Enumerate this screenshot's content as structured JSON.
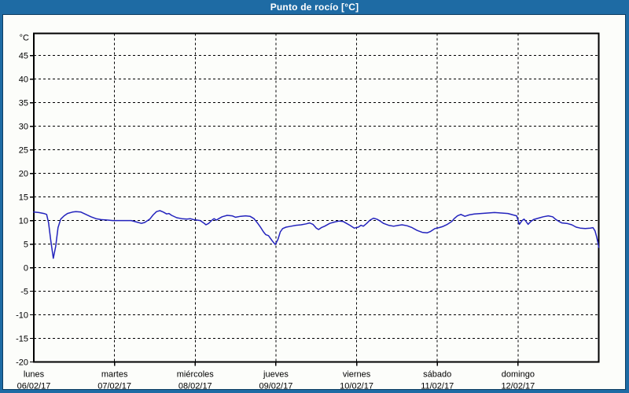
{
  "window": {
    "title": "Punto de rocío [°C]"
  },
  "colors": {
    "titlebar_bg": "#1e6ba4",
    "frame_border": "#1e6ba4",
    "inner_border": "#0d3d61",
    "content_bg": "#fcfdfa",
    "title_text": "#ffffff",
    "axis": "#000000",
    "grid": "#000000",
    "line": "#2323bd",
    "label_text": "#000000"
  },
  "chart_data": {
    "type": "line",
    "title": "Punto de rocío [°C]",
    "ylabel": "°C",
    "xlabel": "",
    "ylim": [
      -20,
      49.7
    ],
    "y_ticks": [
      45,
      40,
      35,
      30,
      25,
      20,
      15,
      10,
      5,
      0,
      -5,
      -10,
      -15,
      -20
    ],
    "grid": "dashed",
    "legend_position": "none",
    "x_axis": {
      "unit": "hours",
      "range_hours": [
        0,
        168
      ],
      "day_width_hours": 24,
      "day_labels": [
        {
          "day": "lunes",
          "date": "06/02/17"
        },
        {
          "day": "martes",
          "date": "07/02/17"
        },
        {
          "day": "miércoles",
          "date": "08/02/17"
        },
        {
          "day": "jueves",
          "date": "09/02/17"
        },
        {
          "day": "viernes",
          "date": "10/02/17"
        },
        {
          "day": "sábado",
          "date": "11/02/17"
        },
        {
          "day": "domingo",
          "date": "12/02/17"
        }
      ]
    },
    "series": [
      {
        "name": "Punto de rocío",
        "unit": "°C",
        "color": "#2323bd",
        "points_hours_value": [
          [
            0,
            11.8
          ],
          [
            1.5,
            11.7
          ],
          [
            3,
            11.5
          ],
          [
            3.8,
            11.3
          ],
          [
            4.4,
            9.5
          ],
          [
            5,
            6
          ],
          [
            5.8,
            2
          ],
          [
            6.5,
            4.5
          ],
          [
            7.2,
            8.5
          ],
          [
            8,
            10.3
          ],
          [
            9,
            11
          ],
          [
            10,
            11.5
          ],
          [
            11.5,
            11.8
          ],
          [
            12.5,
            11.9
          ],
          [
            14,
            11.8
          ],
          [
            15.5,
            11.3
          ],
          [
            17,
            10.8
          ],
          [
            18.5,
            10.4
          ],
          [
            20,
            10.2
          ],
          [
            22,
            10.1
          ],
          [
            23.5,
            10
          ],
          [
            25,
            10
          ],
          [
            27,
            10
          ],
          [
            29,
            10
          ],
          [
            30.5,
            9.7
          ],
          [
            32,
            9.4
          ],
          [
            33,
            9.6
          ],
          [
            34.5,
            10.3
          ],
          [
            35.5,
            11.2
          ],
          [
            36.5,
            11.9
          ],
          [
            37.5,
            12.1
          ],
          [
            38.5,
            11.8
          ],
          [
            39.5,
            11.4
          ],
          [
            40.2,
            11.5
          ],
          [
            41,
            11.1
          ],
          [
            42.5,
            10.6
          ],
          [
            44,
            10.4
          ],
          [
            45.5,
            10.3
          ],
          [
            46.5,
            10.4
          ],
          [
            47.5,
            10.2
          ],
          [
            48.5,
            10.1
          ],
          [
            49.5,
            10
          ],
          [
            50.5,
            9.5
          ],
          [
            51.2,
            9.1
          ],
          [
            52,
            9.4
          ],
          [
            53,
            10.1
          ],
          [
            53.6,
            10.4
          ],
          [
            54.3,
            10.1
          ],
          [
            55,
            10.4
          ],
          [
            56,
            10.8
          ],
          [
            57.5,
            11.1
          ],
          [
            59,
            11
          ],
          [
            60,
            10.7
          ],
          [
            61.5,
            10.9
          ],
          [
            63,
            11
          ],
          [
            64.3,
            10.9
          ],
          [
            65.5,
            10.4
          ],
          [
            66.5,
            9.5
          ],
          [
            67.5,
            8.5
          ],
          [
            68.3,
            7.6
          ],
          [
            69,
            7
          ],
          [
            69.8,
            6.8
          ],
          [
            70.8,
            5.8
          ],
          [
            71.8,
            4.9
          ],
          [
            72.6,
            6
          ],
          [
            73.3,
            7.6
          ],
          [
            74,
            8.3
          ],
          [
            75,
            8.6
          ],
          [
            76.5,
            8.8
          ],
          [
            78,
            9
          ],
          [
            79.5,
            9.1
          ],
          [
            81,
            9.3
          ],
          [
            82,
            9.5
          ],
          [
            83,
            9.2
          ],
          [
            84,
            8.4
          ],
          [
            84.7,
            8.1
          ],
          [
            85.5,
            8.5
          ],
          [
            86.5,
            8.8
          ],
          [
            88,
            9.4
          ],
          [
            89.5,
            9.7
          ],
          [
            90.8,
            9.9
          ],
          [
            92,
            9.8
          ],
          [
            93,
            9.4
          ],
          [
            94,
            9
          ],
          [
            95.3,
            8.4
          ],
          [
            96.5,
            8.6
          ],
          [
            97.3,
            9
          ],
          [
            98,
            8.8
          ],
          [
            99,
            9.4
          ],
          [
            100,
            10.1
          ],
          [
            101,
            10.5
          ],
          [
            102,
            10.3
          ],
          [
            103,
            9.9
          ],
          [
            104,
            9.4
          ],
          [
            105.5,
            9
          ],
          [
            107,
            8.8
          ],
          [
            108.5,
            9
          ],
          [
            109.5,
            9.1
          ],
          [
            111,
            8.9
          ],
          [
            112.5,
            8.5
          ],
          [
            114,
            7.9
          ],
          [
            115.5,
            7.5
          ],
          [
            117,
            7.4
          ],
          [
            118,
            7.7
          ],
          [
            119.3,
            8.3
          ],
          [
            120.5,
            8.5
          ],
          [
            121.5,
            8.7
          ],
          [
            123,
            9.2
          ],
          [
            124.3,
            9.8
          ],
          [
            125,
            10.4
          ],
          [
            126,
            11
          ],
          [
            127,
            11.3
          ],
          [
            128.2,
            10.9
          ],
          [
            129.5,
            11.2
          ],
          [
            131,
            11.4
          ],
          [
            133,
            11.5
          ],
          [
            135,
            11.6
          ],
          [
            137,
            11.7
          ],
          [
            139,
            11.6
          ],
          [
            141,
            11.5
          ],
          [
            142.5,
            11.2
          ],
          [
            143.6,
            11
          ],
          [
            144.4,
            9.2
          ],
          [
            145.2,
            10
          ],
          [
            145.8,
            10.3
          ],
          [
            146.4,
            9.8
          ],
          [
            147,
            9.2
          ],
          [
            147.8,
            9.8
          ],
          [
            148.6,
            10.2
          ],
          [
            150,
            10.5
          ],
          [
            151.5,
            10.8
          ],
          [
            153,
            11
          ],
          [
            154.3,
            10.8
          ],
          [
            155.3,
            10.2
          ],
          [
            156.2,
            9.8
          ],
          [
            157,
            9.5
          ],
          [
            158.5,
            9.4
          ],
          [
            160,
            9.1
          ],
          [
            161.3,
            8.6
          ],
          [
            162.5,
            8.4
          ],
          [
            164,
            8.3
          ],
          [
            165.5,
            8.4
          ],
          [
            166.3,
            8.5
          ],
          [
            166.9,
            7.8
          ],
          [
            167.4,
            6.5
          ],
          [
            167.8,
            5.2
          ],
          [
            168,
            4.3
          ]
        ]
      }
    ]
  }
}
